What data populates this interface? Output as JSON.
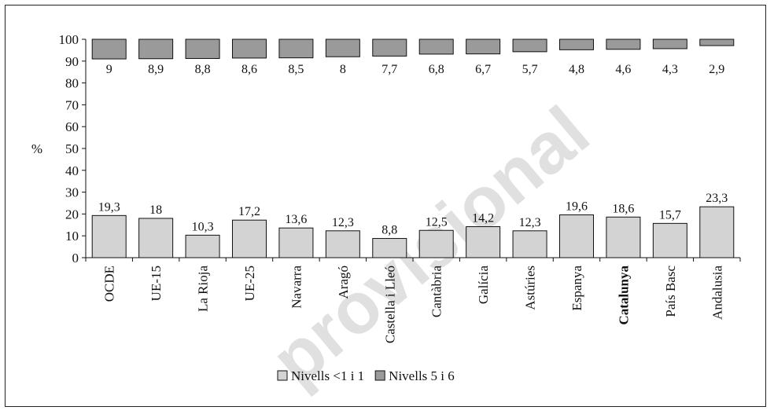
{
  "chart_data": {
    "type": "bar",
    "categories": [
      "OCDE",
      "UE-15",
      "La Rioja",
      "UE-25",
      "Navarra",
      "Aragó",
      "Castella i Lleó",
      "Cantàbria",
      "Galícia",
      "Astúries",
      "Espanya",
      "Catalunya",
      "País Basc",
      "Andalusia"
    ],
    "bold_categories": [
      "Catalunya"
    ],
    "series": [
      {
        "name": "Nivells <1 i 1",
        "color": "#d3d3d3",
        "values": [
          19.3,
          18,
          10.3,
          17.2,
          13.6,
          12.3,
          8.8,
          12.5,
          14.2,
          12.3,
          19.6,
          18.6,
          15.7,
          23.3
        ],
        "labels": [
          "19,3",
          "18",
          "10,3",
          "17,2",
          "13,6",
          "12,3",
          "8,8",
          "12,5",
          "14,2",
          "12,3",
          "19,6",
          "18,6",
          "15,7",
          "23,3"
        ]
      },
      {
        "name": "Nivells 5 i 6",
        "color": "#9a9a9a",
        "values": [
          9,
          8.9,
          8.8,
          8.6,
          8.5,
          8,
          7.7,
          6.8,
          6.7,
          5.7,
          4.8,
          4.6,
          4.3,
          2.9
        ],
        "labels": [
          "9",
          "8,9",
          "8,8",
          "8,6",
          "8,5",
          "8",
          "7,7",
          "6,8",
          "6,7",
          "5,7",
          "4,8",
          "4,6",
          "4,3",
          "2,9"
        ]
      }
    ],
    "ylabel": "%",
    "ylim": [
      0,
      100
    ],
    "yticks": [
      "0",
      "10",
      "20",
      "30",
      "40",
      "50",
      "60",
      "70",
      "80",
      "90",
      "100"
    ],
    "grid": false,
    "legend_position": "bottom-center",
    "legend": [
      "Nivells <1 i 1",
      "Nivells 5 i 6"
    ]
  },
  "watermark": "provisional"
}
